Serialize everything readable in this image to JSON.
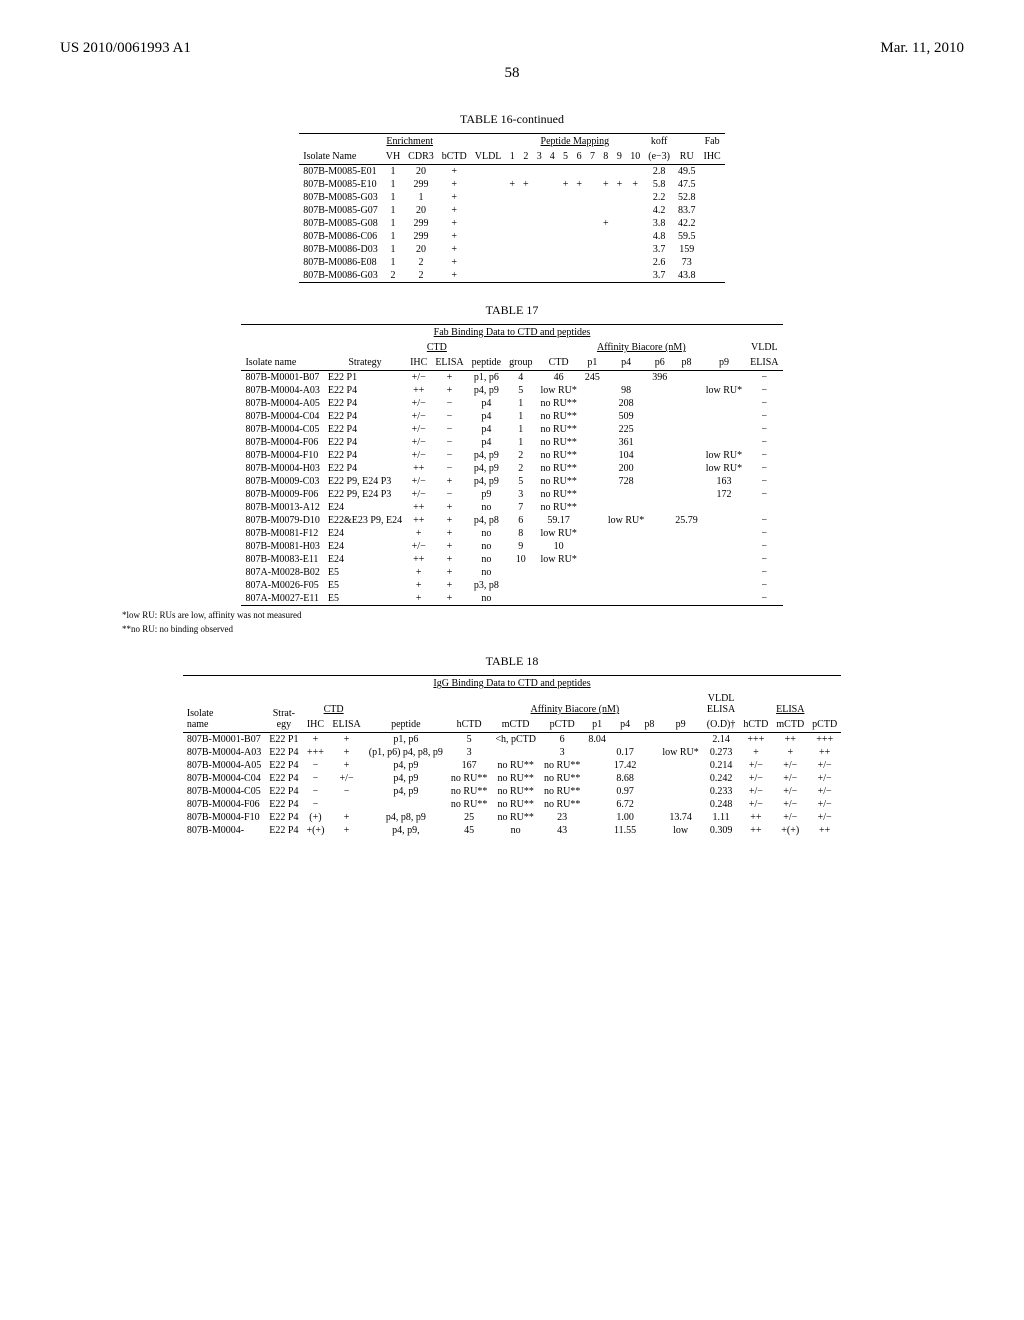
{
  "header": {
    "left": "US 2010/0061993 A1",
    "right": "Mar. 11, 2010",
    "page": "58"
  },
  "t16": {
    "title": "TABLE 16-continued",
    "groupHeaders": {
      "enrich": "Enrichment",
      "pep": "Peptide Mapping",
      "koff": "koff",
      "fab": "Fab"
    },
    "cols": [
      "Isolate Name",
      "VH",
      "CDR3",
      "bCTD",
      "VLDL",
      "1",
      "2",
      "3",
      "4",
      "5",
      "6",
      "7",
      "8",
      "9",
      "10",
      "(e−3)",
      "RU",
      "IHC"
    ],
    "rows": [
      [
        "807B-M0085-E01",
        "1",
        "20",
        "+",
        "",
        "",
        "",
        "",
        "",
        "",
        "",
        "",
        "",
        "",
        "",
        "2.8",
        "49.5",
        ""
      ],
      [
        "807B-M0085-E10",
        "1",
        "299",
        "+",
        "",
        "+",
        "+",
        "",
        "",
        "+",
        "+",
        "",
        "+",
        "+",
        "+",
        "5.8",
        "47.5",
        ""
      ],
      [
        "807B-M0085-G03",
        "1",
        "1",
        "+",
        "",
        "",
        "",
        "",
        "",
        "",
        "",
        "",
        "",
        "",
        "",
        "2.2",
        "52.8",
        ""
      ],
      [
        "807B-M0085-G07",
        "1",
        "20",
        "+",
        "",
        "",
        "",
        "",
        "",
        "",
        "",
        "",
        "",
        "",
        "",
        "4.2",
        "83.7",
        ""
      ],
      [
        "807B-M0085-G08",
        "1",
        "299",
        "+",
        "",
        "",
        "",
        "",
        "",
        "",
        "",
        "",
        "+",
        "",
        "",
        "3.8",
        "42.2",
        ""
      ],
      [
        "807B-M0086-C06",
        "1",
        "299",
        "+",
        "",
        "",
        "",
        "",
        "",
        "",
        "",
        "",
        "",
        "",
        "",
        "4.8",
        "59.5",
        ""
      ],
      [
        "807B-M0086-D03",
        "1",
        "20",
        "+",
        "",
        "",
        "",
        "",
        "",
        "",
        "",
        "",
        "",
        "",
        "",
        "3.7",
        "159",
        ""
      ],
      [
        "807B-M0086-E08",
        "1",
        "2",
        "+",
        "",
        "",
        "",
        "",
        "",
        "",
        "",
        "",
        "",
        "",
        "",
        "2.6",
        "73",
        ""
      ],
      [
        "807B-M0086-G03",
        "2",
        "2",
        "+",
        "",
        "",
        "",
        "",
        "",
        "",
        "",
        "",
        "",
        "",
        "",
        "3.7",
        "43.8",
        ""
      ]
    ]
  },
  "t17": {
    "title": "TABLE 17",
    "subtitle": "Fab Binding Data to CTD and peptides",
    "groupHeaders": {
      "ctd": "CTD",
      "aff": "Affinity Biacore (nM)",
      "vldl": "VLDL"
    },
    "cols": [
      "Isolate name",
      "Strategy",
      "IHC",
      "ELISA",
      "peptide",
      "group",
      "CTD",
      "p1",
      "p4",
      "p6",
      "p8",
      "p9",
      "ELISA"
    ],
    "rows": [
      [
        "807B-M0001-B07",
        "E22 P1",
        "+/−",
        "+",
        "p1, p6",
        "4",
        "46",
        "245",
        "",
        "396",
        "",
        "",
        "−"
      ],
      [
        "807B-M0004-A03",
        "E22 P4",
        "++",
        "+",
        "p4, p9",
        "5",
        "low RU*",
        "",
        "98",
        "",
        "",
        "low RU*",
        "−"
      ],
      [
        "807B-M0004-A05",
        "E22 P4",
        "+/−",
        "−",
        "p4",
        "1",
        "no RU**",
        "",
        "208",
        "",
        "",
        "",
        "−"
      ],
      [
        "807B-M0004-C04",
        "E22 P4",
        "+/−",
        "−",
        "p4",
        "1",
        "no RU**",
        "",
        "509",
        "",
        "",
        "",
        "−"
      ],
      [
        "807B-M0004-C05",
        "E22 P4",
        "+/−",
        "−",
        "p4",
        "1",
        "no RU**",
        "",
        "225",
        "",
        "",
        "",
        "−"
      ],
      [
        "807B-M0004-F06",
        "E22 P4",
        "+/−",
        "−",
        "p4",
        "1",
        "no RU**",
        "",
        "361",
        "",
        "",
        "",
        "−"
      ],
      [
        "807B-M0004-F10",
        "E22 P4",
        "+/−",
        "−",
        "p4, p9",
        "2",
        "no RU**",
        "",
        "104",
        "",
        "",
        "low RU*",
        "−"
      ],
      [
        "807B-M0004-H03",
        "E22 P4",
        "++",
        "−",
        "p4, p9",
        "2",
        "no RU**",
        "",
        "200",
        "",
        "",
        "low RU*",
        "−"
      ],
      [
        "807B-M0009-C03",
        "E22 P9, E24 P3",
        "+/−",
        "+",
        "p4, p9",
        "5",
        "no RU**",
        "",
        "728",
        "",
        "",
        "163",
        "−"
      ],
      [
        "807B-M0009-F06",
        "E22 P9, E24 P3",
        "+/−",
        "−",
        "p9",
        "3",
        "no RU**",
        "",
        "",
        "",
        "",
        "172",
        "−"
      ],
      [
        "807B-M0013-A12",
        "E24",
        "++",
        "+",
        "no",
        "7",
        "no RU**",
        "",
        "",
        "",
        "",
        "",
        ""
      ],
      [
        "807B-M0079-D10",
        "E22&E23 P9, E24",
        "++",
        "+",
        "p4, p8",
        "6",
        "59.17",
        "",
        "low RU*",
        "",
        "25.79",
        "",
        "−"
      ],
      [
        "807B-M0081-F12",
        "E24",
        "+",
        "+",
        "no",
        "8",
        "low RU*",
        "",
        "",
        "",
        "",
        "",
        "−"
      ],
      [
        "807B-M0081-H03",
        "E24",
        "+/−",
        "+",
        "no",
        "9",
        "10",
        "",
        "",
        "",
        "",
        "",
        "−"
      ],
      [
        "807B-M0083-E11",
        "E24",
        "++",
        "+",
        "no",
        "10",
        "low RU*",
        "",
        "",
        "",
        "",
        "",
        "−"
      ],
      [
        "807A-M0028-B02",
        "E5",
        "+",
        "+",
        "no",
        "",
        "",
        "",
        "",
        "",
        "",
        "",
        "−"
      ],
      [
        "807A-M0026-F05",
        "E5",
        "+",
        "+",
        "p3, p8",
        "",
        "",
        "",
        "",
        "",
        "",
        "",
        "−"
      ],
      [
        "807A-M0027-E11",
        "E5",
        "+",
        "+",
        "no",
        "",
        "",
        "",
        "",
        "",
        "",
        "",
        "−"
      ]
    ],
    "foot1": "*low RU: RUs are low, affinity was not measured",
    "foot2": "**no RU: no binding observed"
  },
  "t18": {
    "title": "TABLE 18",
    "subtitle": "IgG Binding Data to CTD and peptides",
    "groupHeaders": {
      "ctd": "CTD",
      "aff": "Affinity Biacore (nM)",
      "vldl": "VLDL ELISA",
      "elisa": "ELISA"
    },
    "cols": [
      "Isolate name",
      "Strat-egy",
      "IHC",
      "ELISA",
      "peptide",
      "hCTD",
      "mCTD",
      "pCTD",
      "p1",
      "p4",
      "p8",
      "p9",
      "(O.D)†",
      "hCTD",
      "mCTD",
      "pCTD"
    ],
    "rows": [
      [
        "807B-M0001-B07",
        "E22 P1",
        "+",
        "+",
        "p1, p6",
        "5",
        "<h, pCTD",
        "6",
        "8.04",
        "",
        "",
        "",
        "2.14",
        "+++",
        "++",
        "+++"
      ],
      [
        "807B-M0004-A03",
        "E22 P4",
        "+++",
        "+",
        "(p1, p6) p4, p8, p9",
        "3",
        "",
        "3",
        "",
        "0.17",
        "",
        "low RU*",
        "0.273",
        "+",
        "+",
        "++"
      ],
      [
        "807B-M0004-A05",
        "E22 P4",
        "−",
        "+",
        "p4, p9",
        "167",
        "no RU**",
        "no RU**",
        "",
        "17.42",
        "",
        "",
        "0.214",
        "+/−",
        "+/−",
        "+/−"
      ],
      [
        "807B-M0004-C04",
        "E22 P4",
        "−",
        "+/−",
        "p4, p9",
        "no RU**",
        "no RU**",
        "no RU**",
        "",
        "8.68",
        "",
        "",
        "0.242",
        "+/−",
        "+/−",
        "+/−"
      ],
      [
        "807B-M0004-C05",
        "E22 P4",
        "−",
        "−",
        "p4, p9",
        "no RU**",
        "no RU**",
        "no RU**",
        "",
        "0.97",
        "",
        "",
        "0.233",
        "+/−",
        "+/−",
        "+/−"
      ],
      [
        "807B-M0004-F06",
        "E22 P4",
        "−",
        "",
        "",
        "no RU**",
        "no RU**",
        "no RU**",
        "",
        "6.72",
        "",
        "",
        "0.248",
        "+/−",
        "+/−",
        "+/−"
      ],
      [
        "807B-M0004-F10",
        "E22 P4",
        "(+)",
        "+",
        "p4, p8, p9",
        "25",
        "no RU**",
        "23",
        "",
        "1.00",
        "",
        "13.74",
        "1.11",
        "++",
        "+/−",
        "+/−"
      ],
      [
        "807B-M0004-",
        "E22 P4",
        "+(+)",
        "+",
        "p4, p9,",
        "45",
        "no",
        "43",
        "",
        "11.55",
        "",
        "low",
        "0.309",
        "++",
        "+(+)",
        "++"
      ]
    ]
  }
}
